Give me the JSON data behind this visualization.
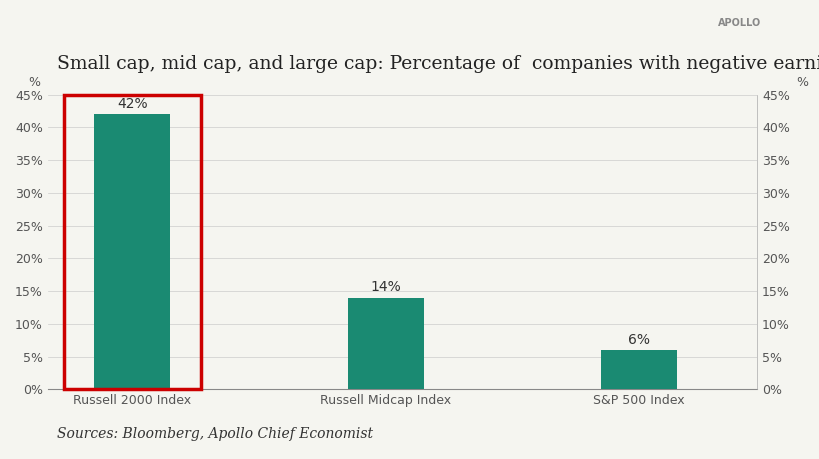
{
  "categories": [
    "Russell 2000 Index",
    "Russell Midcap Index",
    "S&P 500 Index"
  ],
  "values": [
    42,
    14,
    6
  ],
  "bar_labels": [
    "42%",
    "14%",
    "6%"
  ],
  "bar_color": "#1a8a72",
  "highlight_bar_index": 0,
  "highlight_rect_color": "#cc0000",
  "title": "Small cap, mid cap, and large cap: Percentage of  companies with negative earnings",
  "title_fontsize": 13.5,
  "watermark": "APOLLO",
  "source_text": "Sources: Bloomberg, Apollo Chief Economist",
  "ylim": [
    0,
    45
  ],
  "yticks": [
    0,
    5,
    10,
    15,
    20,
    25,
    30,
    35,
    40,
    45
  ],
  "ytick_labels": [
    "0%",
    "5%",
    "10%",
    "15%",
    "20%",
    "25%",
    "30%",
    "35%",
    "40%",
    "45%"
  ],
  "ylabel_symbol": "%",
  "background_color": "#f5f5f0",
  "bar_width": 0.45,
  "label_fontsize": 10,
  "tick_fontsize": 9,
  "source_fontsize": 10
}
